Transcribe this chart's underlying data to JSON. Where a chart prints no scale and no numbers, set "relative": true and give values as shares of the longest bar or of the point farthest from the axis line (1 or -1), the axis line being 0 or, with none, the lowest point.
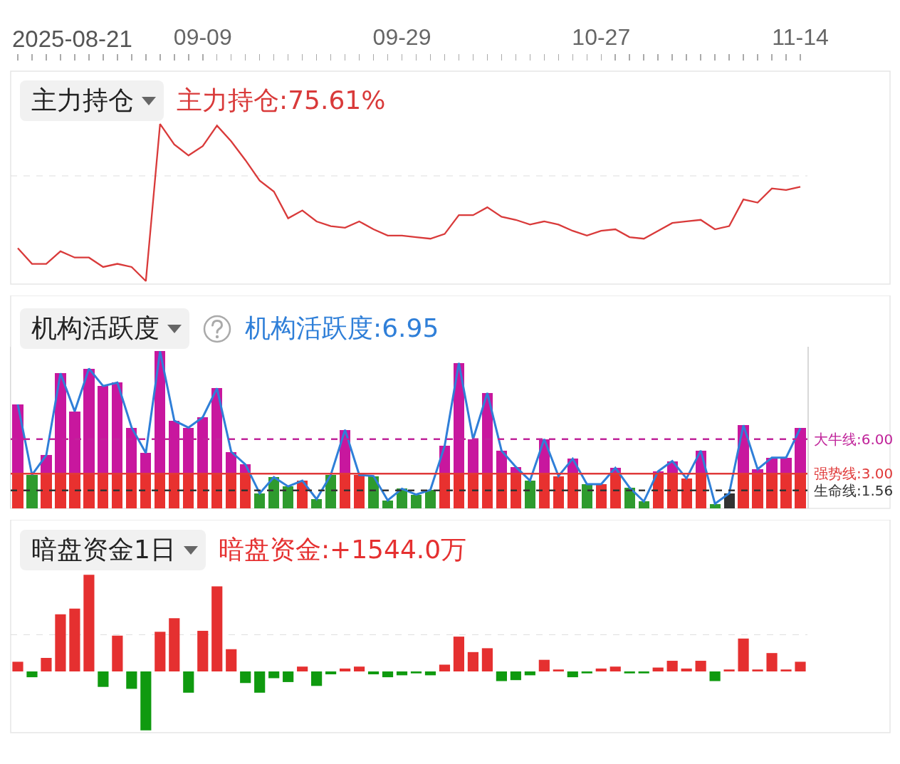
{
  "chart_data": [
    {
      "type": "line",
      "title": "主力持仓",
      "subtitle": "主力持仓:75.61%",
      "relative": true,
      "color": "#d93a3a",
      "tick_labels": "x",
      "categories": [
        null,
        null,
        null,
        null,
        null,
        null,
        null,
        null,
        null,
        null,
        null,
        null,
        null,
        "09-09",
        null,
        null,
        null,
        null,
        null,
        null,
        null,
        null,
        null,
        null,
        null,
        null,
        null,
        "09-29",
        null,
        null,
        null,
        null,
        null,
        null,
        null,
        null,
        null,
        null,
        null,
        null,
        null,
        "10-27",
        null,
        null,
        null,
        null,
        null,
        null,
        null,
        null,
        null,
        null,
        null,
        null,
        null,
        "11-14"
      ],
      "values": [
        0.21,
        0.11,
        0.11,
        0.19,
        0.15,
        0.15,
        0.09,
        0.11,
        0.09,
        0,
        1,
        0.87,
        0.8,
        0.86,
        0.99,
        0.89,
        0.77,
        0.64,
        0.57,
        0.4,
        0.45,
        0.38,
        0.35,
        0.34,
        0.38,
        0.33,
        0.29,
        0.29,
        0.28,
        0.27,
        0.3,
        0.42,
        0.42,
        0.47,
        0.41,
        0.39,
        0.36,
        0.38,
        0.36,
        0.32,
        0.29,
        0.32,
        0.33,
        0.28,
        0.27,
        0.32,
        0.37,
        0.38,
        0.39,
        0.33,
        0.35,
        0.52,
        0.5,
        0.59,
        0.58,
        0.6
      ],
      "ref_lines": [
        {
          "axis": "y",
          "value": 0.67,
          "color": "#dddddd",
          "line_style": "dashed"
        }
      ],
      "annotations": [
        "2025-08-21"
      ]
    },
    {
      "type": "bar",
      "title": "机构活跃度",
      "subtitle": "机构活跃度:6.95",
      "stacked": true,
      "tick_labels": false,
      "ylim": [
        0,
        14
      ],
      "categories": [
        null,
        null,
        null,
        null,
        null,
        null,
        null,
        null,
        null,
        null,
        null,
        null,
        null,
        null,
        null,
        null,
        null,
        null,
        null,
        null,
        null,
        null,
        null,
        null,
        null,
        null,
        null,
        null,
        null,
        null,
        null,
        null,
        null,
        null,
        null,
        null,
        null,
        null,
        null,
        null,
        null,
        null,
        null,
        null,
        null,
        null,
        null,
        null,
        null,
        null,
        null,
        null,
        null,
        null,
        null,
        null
      ],
      "series": [
        {
          "type": "bar",
          "colors": [
            "#e8312f",
            "#2e9b2e",
            "#e8312f",
            "#e8312f",
            "#e8312f",
            "#e8312f",
            "#e8312f",
            "#e8312f",
            "#e8312f",
            "#e8312f",
            "#e8312f",
            "#e8312f",
            "#e8312f",
            "#e8312f",
            "#e8312f",
            "#e8312f",
            "#e8312f",
            "#2e9b2e",
            "#2e9b2e",
            "#2e9b2e",
            "#e8312f",
            "#2e9b2e",
            "#2e9b2e",
            "#e8312f",
            "#e8312f",
            "#2e9b2e",
            "#2e9b2e",
            "#2e9b2e",
            "#2e9b2e",
            "#2e9b2e",
            "#e8312f",
            "#e8312f",
            "#e8312f",
            "#e8312f",
            "#e8312f",
            "#e8312f",
            "#2e9b2e",
            "#e8312f",
            "#e8312f",
            "#e8312f",
            "#2e9b2e",
            "#e8312f",
            "#e8312f",
            "#2e9b2e",
            "#2e9b2e",
            "#e8312f",
            "#e8312f",
            "#e8312f",
            "#e8312f",
            "#2e9b2e",
            "#333333",
            "#e8312f",
            "#e8312f",
            "#e8312f",
            "#e8312f",
            "#e8312f"
          ],
          "values": [
            3,
            2.9,
            3,
            3,
            3,
            3,
            3,
            3,
            3,
            3,
            3,
            3,
            3,
            3,
            3,
            3,
            3,
            1.3,
            2.7,
            1.9,
            2.4,
            0.8,
            2.9,
            3,
            2.9,
            2.8,
            0.7,
            1.7,
            1.2,
            1.6,
            3,
            3,
            3,
            3,
            3,
            3,
            2.4,
            3,
            2.8,
            3,
            2.1,
            2.1,
            3,
            1.8,
            0.6,
            3,
            3,
            2.6,
            3,
            0.4,
            1.3,
            3,
            3,
            3,
            3,
            3
          ]
        },
        {
          "type": "bar",
          "color": "#c8179e",
          "values": [
            6.0,
            null,
            1.6,
            8.7,
            5.4,
            9.1,
            7.6,
            7.9,
            4.0,
            1.8,
            10.6,
            4.6,
            4.0,
            4.9,
            7.4,
            1.9,
            0.8,
            null,
            null,
            null,
            null,
            null,
            null,
            3.8,
            null,
            null,
            null,
            null,
            null,
            null,
            2.4,
            9.6,
            3.0,
            7.0,
            2.0,
            0.6,
            null,
            3.0,
            null,
            1.3,
            null,
            null,
            0.5,
            null,
            null,
            0.2,
            1.1,
            null,
            2.0,
            null,
            null,
            4.2,
            0.4,
            1.4,
            1.4,
            3.95
          ]
        },
        {
          "type": "line",
          "color": "#2f7fd8",
          "values": [
            9.0,
            2.9,
            4.6,
            11.7,
            8.4,
            12.1,
            10.6,
            10.9,
            7.0,
            4.8,
            13.6,
            7.6,
            7.0,
            7.9,
            10.4,
            4.9,
            3.8,
            1.3,
            2.7,
            1.9,
            2.4,
            0.8,
            2.9,
            6.8,
            2.9,
            2.8,
            0.7,
            1.7,
            1.2,
            1.6,
            5.4,
            12.6,
            6.0,
            10.0,
            5.0,
            3.6,
            2.4,
            6.0,
            2.8,
            4.3,
            2.1,
            2.1,
            3.5,
            1.8,
            0.6,
            3.2,
            4.1,
            2.6,
            5.0,
            0.4,
            1.3,
            7.2,
            3.4,
            4.4,
            4.4,
            6.95
          ]
        }
      ],
      "ref_lines": [
        {
          "axis": "y",
          "value": 1.56,
          "label": "生命线:1.56",
          "color": "#333333",
          "line_style": "dashed"
        },
        {
          "axis": "y",
          "value": 3.0,
          "label": "强势线:3.00",
          "color": "#e03a3a",
          "line_style": "solid"
        },
        {
          "axis": "y",
          "value": 6.0,
          "label": "大牛线:6.00",
          "color": "#c0249a",
          "line_style": "dashed"
        }
      ]
    },
    {
      "type": "bar",
      "title": "暗盘资金1日",
      "subtitle": "暗盘资金:+1544.0万",
      "relative": true,
      "tick_labels": false,
      "categories": [
        null,
        null,
        null,
        null,
        null,
        null,
        null,
        null,
        null,
        null,
        null,
        null,
        null,
        null,
        null,
        null,
        null,
        null,
        null,
        null,
        null,
        null,
        null,
        null,
        null,
        null,
        null,
        null,
        null,
        null,
        null,
        null,
        null,
        null,
        null,
        null,
        null,
        null,
        null,
        null,
        null,
        null,
        null,
        null,
        null,
        null,
        null,
        null,
        null,
        null,
        null,
        null,
        null,
        null,
        null,
        null
      ],
      "values": [
        0.1,
        -0.06,
        0.14,
        0.59,
        0.65,
        1,
        -0.16,
        0.37,
        -0.18,
        -0.61,
        0.41,
        0.55,
        -0.22,
        0.42,
        0.88,
        0.23,
        -0.12,
        -0.22,
        -0.07,
        -0.11,
        0.05,
        -0.15,
        -0.03,
        0.03,
        0.05,
        -0.03,
        -0.06,
        -0.04,
        -0.02,
        -0.04,
        0.07,
        0.36,
        0.2,
        0.24,
        -0.1,
        -0.09,
        -0.04,
        0.12,
        0.02,
        -0.06,
        -0.02,
        0.03,
        0.05,
        -0.02,
        -0.02,
        0.04,
        0.11,
        0.03,
        0.11,
        -0.1,
        0.02,
        0.34,
        0.02,
        0.19,
        0.02,
        0.1
      ],
      "colors": [
        "#e53030",
        "#0f9a0f",
        "#e53030",
        "#e53030",
        "#e53030",
        "#e53030",
        "#0f9a0f",
        "#e53030",
        "#0f9a0f",
        "#0f9a0f",
        "#e53030",
        "#e53030",
        "#0f9a0f",
        "#e53030",
        "#e53030",
        "#e53030",
        "#0f9a0f",
        "#0f9a0f",
        "#0f9a0f",
        "#0f9a0f",
        "#e53030",
        "#0f9a0f",
        "#0f9a0f",
        "#e53030",
        "#e53030",
        "#0f9a0f",
        "#0f9a0f",
        "#0f9a0f",
        "#0f9a0f",
        "#0f9a0f",
        "#e53030",
        "#e53030",
        "#e53030",
        "#e53030",
        "#0f9a0f",
        "#0f9a0f",
        "#0f9a0f",
        "#e53030",
        "#e53030",
        "#0f9a0f",
        "#0f9a0f",
        "#e53030",
        "#e53030",
        "#0f9a0f",
        "#0f9a0f",
        "#e53030",
        "#e53030",
        "#e53030",
        "#e53030",
        "#0f9a0f",
        "#e53030",
        "#e53030",
        "#e53030",
        "#e53030",
        "#e53030",
        "#e53030"
      ],
      "ref_lines": [
        {
          "axis": "y",
          "value": 0.38,
          "color": "#dddddd",
          "line_style": "dashed"
        }
      ]
    }
  ]
}
